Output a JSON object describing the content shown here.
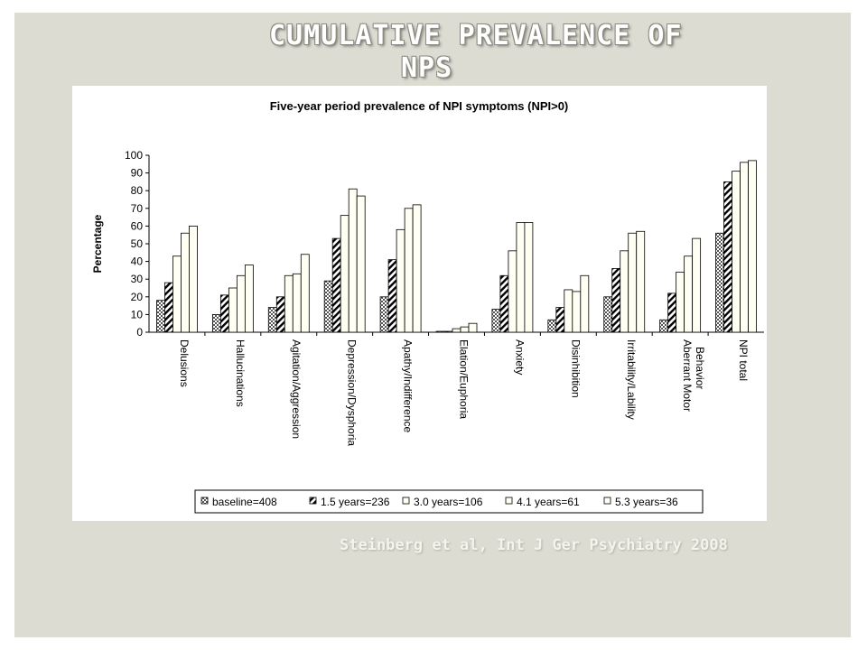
{
  "slide": {
    "title_line1": "CUMULATIVE PREVALENCE OF",
    "title_line2": "NPS",
    "citation": "Steinberg et al, Int J Ger Psychiatry 2008"
  },
  "chart_data": {
    "type": "bar",
    "title": "Five-year period prevalence of NPI symptoms (NPI>0)",
    "xlabel": "",
    "ylabel": "Percentage",
    "ylim": [
      0,
      100
    ],
    "yticks": [
      0,
      10,
      20,
      30,
      40,
      50,
      60,
      70,
      80,
      90,
      100
    ],
    "grid": false,
    "legend_position": "bottom",
    "categories": [
      "Delusions",
      "Hallucinations",
      "Agitation/Aggression",
      "Depression/Dysphoria",
      "Apathy/Indifference",
      "Elation/Euphoria",
      "Anxiety",
      "Disinhibition",
      "Irritability/Lability",
      "Aberrant Motor Behavior",
      "NPI total"
    ],
    "series": [
      {
        "name": "baseline=408",
        "values": [
          18,
          10,
          14,
          29,
          20,
          0.5,
          13,
          7,
          20,
          7,
          56
        ]
      },
      {
        "name": "1.5 years=236",
        "values": [
          28,
          21,
          20,
          53,
          41,
          0.5,
          32,
          14,
          36,
          22,
          85
        ]
      },
      {
        "name": "3.0 years=106",
        "values": [
          43,
          25,
          32,
          66,
          58,
          2,
          46,
          24,
          46,
          34,
          91
        ]
      },
      {
        "name": "4.1 years=61",
        "values": [
          56,
          32,
          33,
          81,
          70,
          3,
          62,
          23,
          56,
          43,
          96
        ]
      },
      {
        "name": "5.3 years=36",
        "values": [
          60,
          38,
          44,
          77,
          72,
          5,
          62,
          32,
          57,
          53,
          97
        ]
      }
    ]
  }
}
